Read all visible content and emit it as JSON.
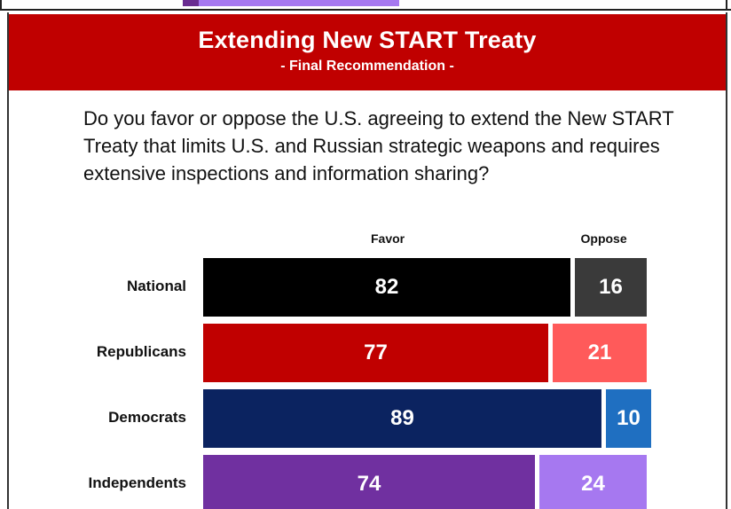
{
  "header": {
    "title": "Extending New START Treaty",
    "subtitle": "- Final Recommendation -"
  },
  "question": "Do you favor or oppose the U.S. agreeing to extend the New START Treaty that limits U.S. and Russian strategic weapons and requires extensive inspections and information sharing?",
  "colors": {
    "header_bg": "#c00000",
    "national_favor": "#000000",
    "national_oppose": "#3a3a3a",
    "republicans_favor": "#c00000",
    "republicans_oppose": "#ff5a5a",
    "democrats_favor": "#0b2360",
    "democrats_oppose": "#1f6fc1",
    "independents_favor": "#7030a0",
    "independents_oppose": "#a678f0"
  },
  "chart_data": {
    "type": "bar",
    "orientation": "horizontal",
    "stacked": true,
    "categories": [
      "National",
      "Republicans",
      "Democrats",
      "Independents"
    ],
    "series": [
      {
        "name": "Favor",
        "values": [
          82,
          77,
          89,
          74
        ]
      },
      {
        "name": "Oppose",
        "values": [
          16,
          21,
          10,
          24
        ]
      }
    ],
    "value_labels": {
      "favor": [
        "82",
        "77",
        "89",
        "74"
      ],
      "oppose": [
        "16",
        "21",
        "10",
        "24"
      ]
    },
    "legend_placement": "top",
    "grid": false
  }
}
